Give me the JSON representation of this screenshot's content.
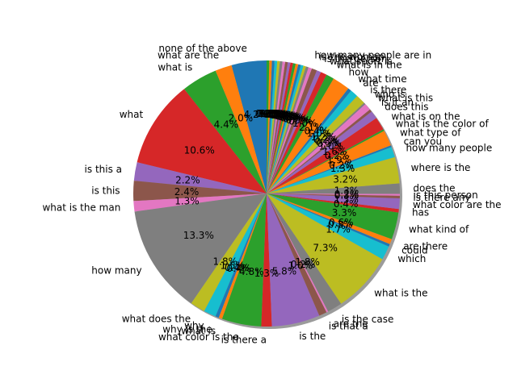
{
  "chart_data": {
    "type": "pie",
    "title": "",
    "shadow": true,
    "start_angle_deg": 90,
    "direction": "counterclockwise",
    "autopct_format": "%1.1f%%",
    "colors": [
      "#1f77b4",
      "#ff7f0e",
      "#2ca02c",
      "#d62728",
      "#9467bd",
      "#8c564b",
      "#e377c2",
      "#7f7f7f",
      "#bcbd22",
      "#17becf"
    ],
    "slices": [
      {
        "label": "none of the above",
        "value": 4.0
      },
      {
        "label": "what are the",
        "value": 1.9
      },
      {
        "label": "what is",
        "value": 4.1
      },
      {
        "label": "what",
        "value": 10.0
      },
      {
        "label": "is this a",
        "value": 2.1
      },
      {
        "label": "is this",
        "value": 2.3
      },
      {
        "label": "what is the man",
        "value": 1.2
      },
      {
        "label": "how many",
        "value": 12.5
      },
      {
        "label": "what does the",
        "value": 1.7
      },
      {
        "label": "why",
        "value": 1.4
      },
      {
        "label": "why is the",
        "value": 0.4
      },
      {
        "label": "what is",
        "value": 0.4
      },
      {
        "label": "what color is the",
        "value": 4.5
      },
      {
        "label": "is there a",
        "value": 1.2
      },
      {
        "label": "is the",
        "value": 5.5
      },
      {
        "label": "is that a",
        "value": 0.9
      },
      {
        "label": "are the",
        "value": 0.2
      },
      {
        "label": "is the case",
        "value": 1.7
      },
      {
        "label": "what is the",
        "value": 6.9
      },
      {
        "label": "which",
        "value": 1.6
      },
      {
        "label": "could",
        "value": 0.3
      },
      {
        "label": "are there",
        "value": 0.6
      },
      {
        "label": "what kind of",
        "value": 3.1
      },
      {
        "label": "has",
        "value": 0.4
      },
      {
        "label": "what color are the",
        "value": 1.2
      },
      {
        "label": "is there any",
        "value": 0.3
      },
      {
        "label": "is this person",
        "value": 0.2
      },
      {
        "label": "does the",
        "value": 1.2
      },
      {
        "label": "where is the",
        "value": 3.0
      },
      {
        "label": "how many people",
        "value": 1.2
      },
      {
        "label": "can you",
        "value": 0.2
      },
      {
        "label": "what type of",
        "value": 1.8
      },
      {
        "label": "what is the color of",
        "value": 0.2
      },
      {
        "label": "what is on the",
        "value": 1.5
      },
      {
        "label": "does this",
        "value": 0.9
      },
      {
        "label": "is it an",
        "value": 0.3
      },
      {
        "label": "what is this",
        "value": 0.8
      },
      {
        "label": "who is",
        "value": 0.2
      },
      {
        "label": "is there",
        "value": 1.1
      },
      {
        "label": "are",
        "value": 0.9
      },
      {
        "label": "what time",
        "value": 0.4
      },
      {
        "label": "how",
        "value": 2.0
      },
      {
        "label": "what is in the",
        "value": 0.9
      },
      {
        "label": "what sport is",
        "value": 0.7
      },
      {
        "label": "is the person",
        "value": 0.5
      },
      {
        "label": "is the woman",
        "value": 0.6
      },
      {
        "label": "how many people are in",
        "value": 0.4
      },
      {
        "label": "",
        "value": 0.3
      },
      {
        "label": "",
        "value": 0.3
      },
      {
        "label": "",
        "value": 0.3
      },
      {
        "label": "",
        "value": 0.3
      },
      {
        "label": "",
        "value": 0.3
      },
      {
        "label": "",
        "value": 0.3
      },
      {
        "label": "",
        "value": 0.3
      },
      {
        "label": "",
        "value": 0.3
      },
      {
        "label": "",
        "value": 0.3
      },
      {
        "label": "",
        "value": 0.3
      },
      {
        "label": "",
        "value": 0.3
      },
      {
        "label": "",
        "value": 0.3
      },
      {
        "label": "",
        "value": 0.3
      },
      {
        "label": "",
        "value": 0.3
      },
      {
        "label": "",
        "value": 0.3
      },
      {
        "label": "",
        "value": 0.3
      }
    ]
  }
}
